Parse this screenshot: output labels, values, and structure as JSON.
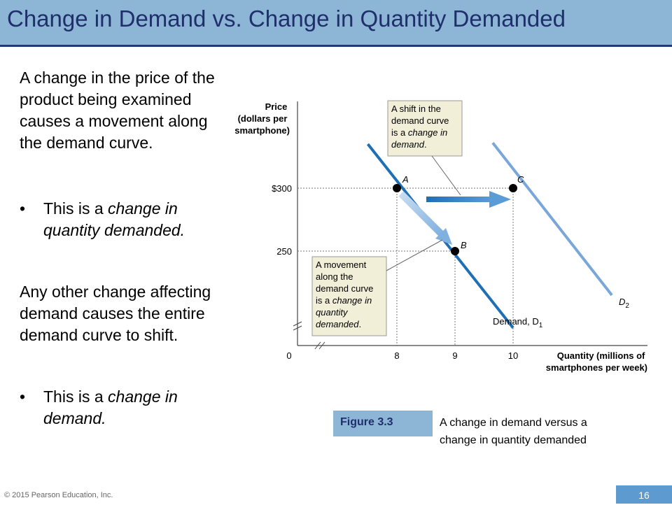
{
  "slide": {
    "title": "Change in Demand vs. Change in Quantity Demanded",
    "para1": "A change in the price of the product being examined causes a movement along the demand curve.",
    "bullet1_prefix": "This is a ",
    "bullet1_emph": "change in quantity demanded.",
    "para2": "Any other change affecting demand causes the entire demand curve to shift.",
    "bullet2_prefix": "This is a ",
    "bullet2_emph": "change in demand.",
    "bullet_glyph": "•"
  },
  "figure": {
    "label": "Figure 3.3",
    "caption": "A change in demand versus a change in quantity demanded"
  },
  "footer": {
    "copyright": "© 2015 Pearson Education, Inc.",
    "page_number": "16"
  },
  "chart_data": {
    "type": "line",
    "ylabel_lines": [
      "Price",
      "(dollars per",
      "smartphone)"
    ],
    "xlabel_lines": [
      "Quantity (millions of",
      "smartphones per week)"
    ],
    "y_ticks": [
      {
        "value": 300,
        "label": "$300"
      },
      {
        "value": 250,
        "label": "250"
      }
    ],
    "x_ticks": [
      {
        "value": 0,
        "label": "0"
      },
      {
        "value": 8,
        "label": "8"
      },
      {
        "value": 9,
        "label": "9"
      },
      {
        "value": 10,
        "label": "10"
      }
    ],
    "series": [
      {
        "name": "Demand, D1",
        "label_main": "Demand, D",
        "label_sub": "1",
        "color": "#1f6fb5",
        "x": [
          7.5,
          10.0
        ],
        "y": [
          335,
          189
        ]
      },
      {
        "name": "D2",
        "label_main": "D",
        "label_sub": "2",
        "color": "#7aa7da",
        "x": [
          9.65,
          11.7
        ],
        "y": [
          336,
          215
        ]
      }
    ],
    "points": [
      {
        "label": "A",
        "x": 8,
        "y": 300
      },
      {
        "label": "B",
        "x": 9,
        "y": 250
      },
      {
        "label": "C",
        "x": 10,
        "y": 300
      }
    ],
    "annotations": [
      {
        "name": "shift-callout",
        "lines": [
          {
            "t": "A shift in the",
            "i": false
          },
          {
            "t": "demand curve",
            "i": false
          },
          {
            "t": "is a ",
            "i": false,
            "em": "change in"
          },
          {
            "t": "",
            "em": "demand",
            "tail": "."
          }
        ]
      },
      {
        "name": "movement-callout",
        "lines": [
          {
            "t": "A movement",
            "i": false
          },
          {
            "t": "along the",
            "i": false
          },
          {
            "t": "demand curve",
            "i": false
          },
          {
            "t": "is a ",
            "em": "change in"
          },
          {
            "t": "",
            "em": "quantity"
          },
          {
            "t": "",
            "em": "demanded",
            "tail": "."
          }
        ]
      }
    ],
    "colors": {
      "axis": "#444444",
      "callout_bg": "#f2efd9",
      "arrow": "#3d83c4"
    }
  }
}
